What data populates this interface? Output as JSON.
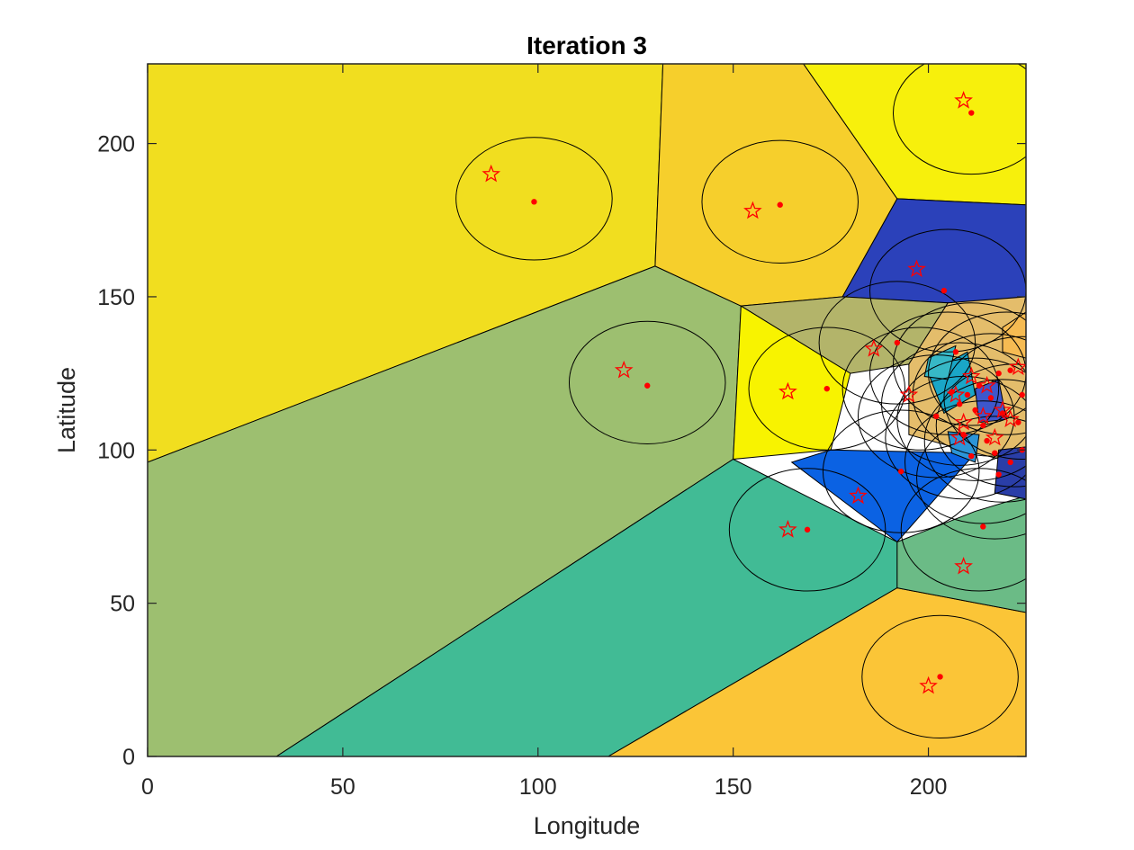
{
  "chart_data": {
    "type": "scatter",
    "title": "Iteration 3",
    "xlabel": "Longitude",
    "ylabel": "Latitude",
    "xlim": [
      0,
      225
    ],
    "ylim": [
      0,
      226
    ],
    "xticks": [
      "0",
      "50",
      "100",
      "150",
      "200"
    ],
    "yticks": [
      "0",
      "50",
      "100",
      "150",
      "200"
    ],
    "grid": false,
    "legend": "none",
    "regions": [
      {
        "color": "#f1de1f",
        "polygon": [
          [
            0,
            96
          ],
          [
            130,
            160
          ],
          [
            132,
            226
          ],
          [
            0,
            226
          ]
        ]
      },
      {
        "color": "#9dbf70",
        "polygon": [
          [
            0,
            0
          ],
          [
            33,
            0
          ],
          [
            150,
            97
          ],
          [
            152,
            147
          ],
          [
            130,
            160
          ],
          [
            0,
            96
          ]
        ]
      },
      {
        "color": "#41bb95",
        "polygon": [
          [
            33,
            0
          ],
          [
            118,
            0
          ],
          [
            192,
            55
          ],
          [
            192,
            70
          ],
          [
            150,
            97
          ]
        ]
      },
      {
        "color": "#fbc537",
        "polygon": [
          [
            118,
            0
          ],
          [
            225,
            0
          ],
          [
            225,
            47
          ],
          [
            192,
            55
          ]
        ]
      },
      {
        "color": "#f6cf2c",
        "polygon": [
          [
            130,
            160
          ],
          [
            132,
            226
          ],
          [
            168,
            226
          ],
          [
            192,
            182
          ],
          [
            178,
            150
          ],
          [
            152,
            147
          ]
        ]
      },
      {
        "color": "#f7f00c",
        "polygon": [
          [
            168,
            226
          ],
          [
            225,
            226
          ],
          [
            225,
            180
          ],
          [
            192,
            182
          ]
        ]
      },
      {
        "color": "#2b41ba",
        "polygon": [
          [
            192,
            182
          ],
          [
            225,
            180
          ],
          [
            225,
            145
          ],
          [
            205,
            148
          ],
          [
            178,
            150
          ]
        ]
      },
      {
        "color": "#b3b46a",
        "polygon": [
          [
            152,
            147
          ],
          [
            178,
            150
          ],
          [
            205,
            148
          ],
          [
            195,
            128
          ],
          [
            180,
            125
          ]
        ]
      },
      {
        "color": "#f8f300",
        "polygon": [
          [
            152,
            147
          ],
          [
            180,
            125
          ],
          [
            175,
            100
          ],
          [
            150,
            97
          ]
        ]
      },
      {
        "color": "#0b62e3",
        "polygon": [
          [
            175,
            100
          ],
          [
            212,
            99
          ],
          [
            192,
            70
          ],
          [
            165,
            96
          ]
        ]
      },
      {
        "color": "#6bbb86",
        "polygon": [
          [
            192,
            70
          ],
          [
            212,
            80
          ],
          [
            225,
            85
          ],
          [
            225,
            47
          ],
          [
            192,
            55
          ]
        ]
      },
      {
        "color": "#e4bd6b",
        "polygon": [
          [
            195,
            128
          ],
          [
            205,
            148
          ],
          [
            225,
            150
          ],
          [
            225,
            95
          ],
          [
            212,
            99
          ],
          [
            195,
            105
          ]
        ]
      },
      {
        "color": "#1aa6c7",
        "polygon": [
          [
            200,
            125
          ],
          [
            210,
            132
          ],
          [
            212,
            118
          ],
          [
            204,
            112
          ]
        ]
      },
      {
        "color": "#3d57cc",
        "polygon": [
          [
            212,
            120
          ],
          [
            218,
            123
          ],
          [
            220,
            110
          ],
          [
            213,
            109
          ]
        ]
      },
      {
        "color": "#2c95d8",
        "polygon": [
          [
            205,
            106
          ],
          [
            213,
            105
          ],
          [
            212,
            96
          ],
          [
            206,
            99
          ]
        ]
      },
      {
        "color": "#2a3ea8",
        "polygon": [
          [
            218,
            100
          ],
          [
            225,
            101
          ],
          [
            225,
            84
          ],
          [
            217,
            86
          ]
        ]
      },
      {
        "color": "#f6bb52",
        "polygon": [
          [
            219,
            140
          ],
          [
            225,
            145
          ],
          [
            225,
            130
          ],
          [
            219,
            132
          ]
        ]
      },
      {
        "color": "#37b8c6",
        "polygon": [
          [
            200,
            130
          ],
          [
            207,
            134
          ],
          [
            205,
            123
          ],
          [
            199,
            124
          ]
        ]
      }
    ],
    "circles": [
      {
        "cx": 99,
        "cy": 182,
        "r": 20
      },
      {
        "cx": 162,
        "cy": 181,
        "r": 20
      },
      {
        "cx": 211,
        "cy": 210,
        "r": 20
      },
      {
        "cx": 128,
        "cy": 122,
        "r": 20
      },
      {
        "cx": 174,
        "cy": 120,
        "r": 20
      },
      {
        "cx": 169,
        "cy": 74,
        "r": 20
      },
      {
        "cx": 203,
        "cy": 26,
        "r": 20
      },
      {
        "cx": 213,
        "cy": 74,
        "r": 20
      },
      {
        "cx": 193,
        "cy": 93,
        "r": 20
      },
      {
        "cx": 205,
        "cy": 152,
        "r": 20
      },
      {
        "cx": 192,
        "cy": 135,
        "r": 20
      },
      {
        "cx": 205,
        "cy": 125,
        "r": 20
      },
      {
        "cx": 208,
        "cy": 115,
        "r": 20
      },
      {
        "cx": 212,
        "cy": 110,
        "r": 20
      },
      {
        "cx": 216,
        "cy": 118,
        "r": 20
      },
      {
        "cx": 219,
        "cy": 103,
        "r": 20
      },
      {
        "cx": 214,
        "cy": 96,
        "r": 20
      },
      {
        "cx": 220,
        "cy": 125,
        "r": 20
      },
      {
        "cx": 209,
        "cy": 104,
        "r": 20
      },
      {
        "cx": 222,
        "cy": 108,
        "r": 20
      },
      {
        "cx": 202,
        "cy": 111,
        "r": 20
      },
      {
        "cx": 217,
        "cy": 91,
        "r": 20
      },
      {
        "cx": 224,
        "cy": 117,
        "r": 20
      },
      {
        "cx": 198,
        "cy": 120,
        "r": 20
      },
      {
        "cx": 211,
        "cy": 128,
        "r": 20
      }
    ],
    "dots": [
      [
        99,
        181
      ],
      [
        162,
        180
      ],
      [
        211,
        210
      ],
      [
        128,
        121
      ],
      [
        174,
        120
      ],
      [
        169,
        74
      ],
      [
        203,
        26
      ],
      [
        214,
        75
      ],
      [
        193,
        93
      ],
      [
        204,
        152
      ],
      [
        192,
        135
      ],
      [
        207,
        132
      ],
      [
        208,
        115
      ],
      [
        212,
        113
      ],
      [
        216,
        117
      ],
      [
        219,
        112
      ],
      [
        215,
        103
      ],
      [
        221,
        126
      ],
      [
        209,
        105
      ],
      [
        223,
        109
      ],
      [
        202,
        111
      ],
      [
        218,
        92
      ],
      [
        224,
        118
      ],
      [
        210,
        118
      ],
      [
        213,
        121
      ],
      [
        217,
        99
      ],
      [
        221,
        96
      ],
      [
        206,
        119
      ],
      [
        214,
        108
      ],
      [
        218,
        125
      ],
      [
        211,
        98
      ],
      [
        224,
        100
      ]
    ],
    "centroids": [
      [
        88,
        190
      ],
      [
        155,
        178
      ],
      [
        209,
        214
      ],
      [
        122,
        126
      ],
      [
        164,
        119
      ],
      [
        164,
        74
      ],
      [
        200,
        23
      ],
      [
        209,
        62
      ],
      [
        182,
        85
      ],
      [
        197,
        159
      ],
      [
        186,
        133
      ],
      [
        195,
        118
      ],
      [
        207,
        118
      ],
      [
        209,
        109
      ],
      [
        214,
        111
      ],
      [
        219,
        113
      ],
      [
        217,
        104
      ],
      [
        223,
        127
      ],
      [
        208,
        104
      ],
      [
        215,
        121
      ],
      [
        221,
        110
      ],
      [
        211,
        124
      ]
    ],
    "colors": {
      "point": "#ff0000",
      "circle": "#000000",
      "boundary": "#000000"
    }
  }
}
